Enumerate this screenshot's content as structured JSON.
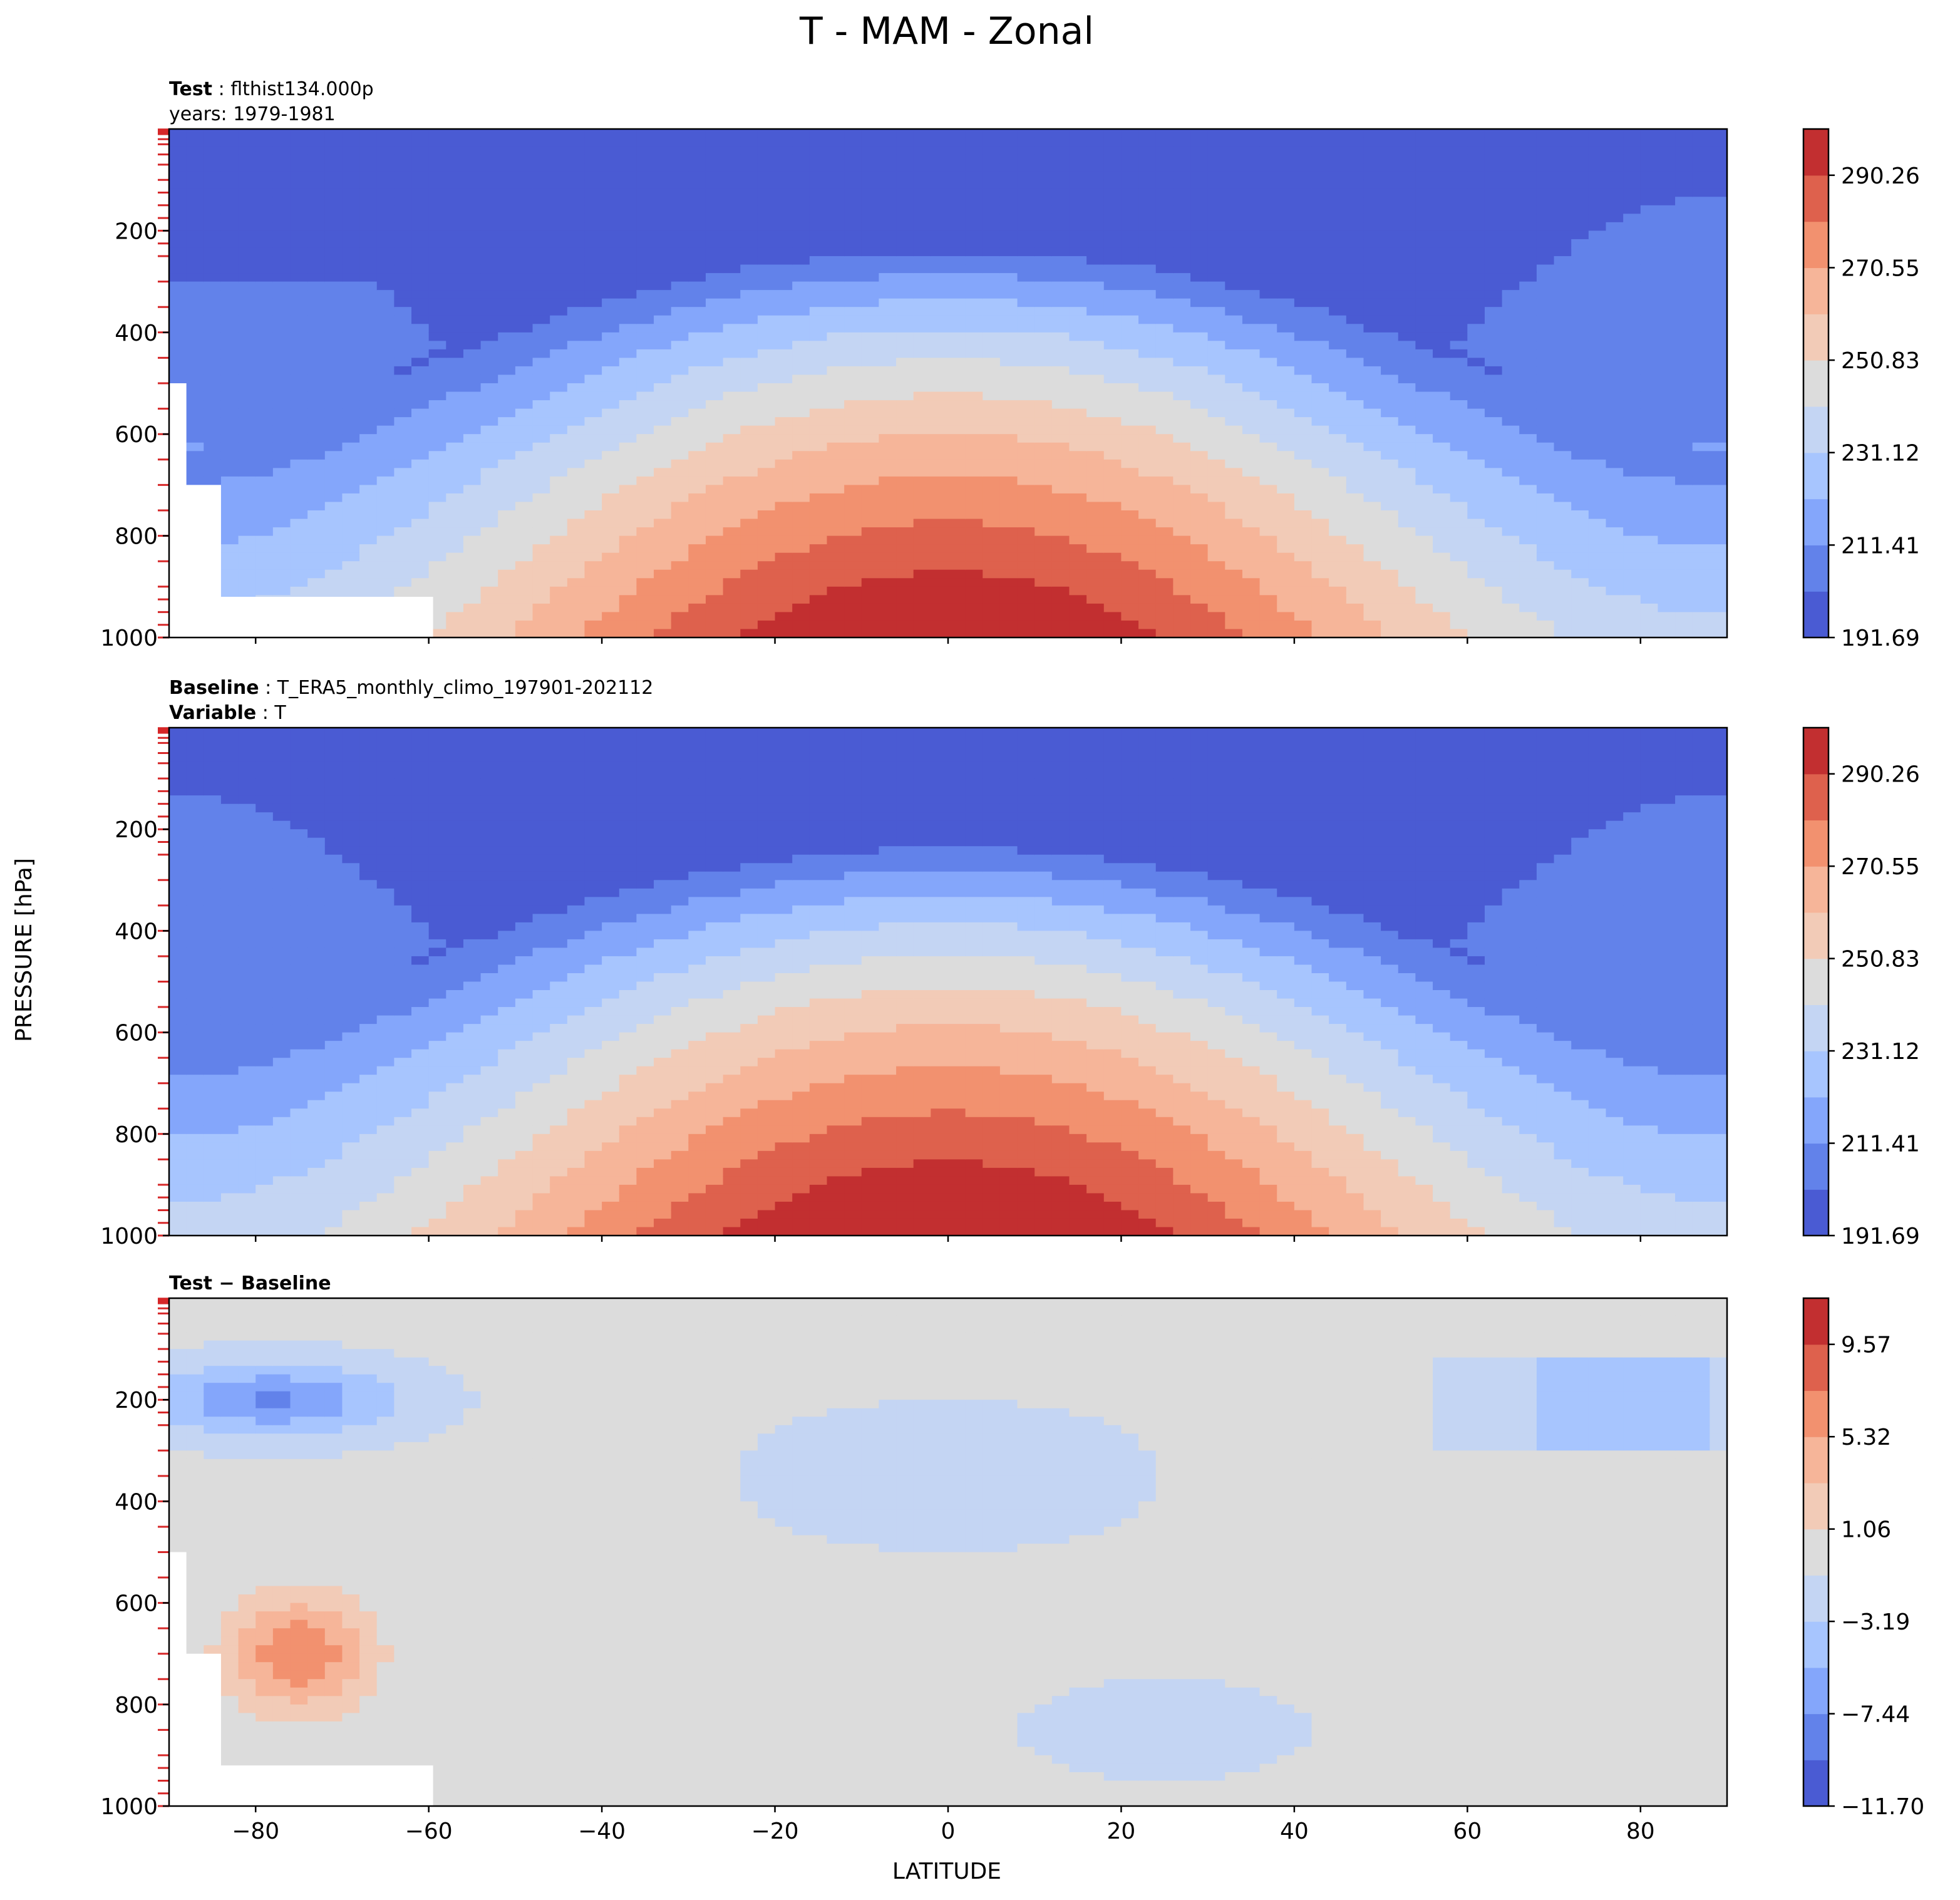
{
  "figure": {
    "title": "T - MAM - Zonal",
    "ylabel": "PRESSURE [hPa]",
    "xlabel": "LATITUDE"
  },
  "chart_data": [
    {
      "type": "heatmap",
      "panel": "test",
      "header": [
        {
          "bold": "Test",
          "text": ": flthist134.000p"
        },
        {
          "bold": "",
          "text": "years: 1979-1981"
        }
      ],
      "x_range": [
        -90,
        90
      ],
      "y_range": [
        1000,
        0
      ],
      "x_ticks": [
        -80,
        -60,
        -40,
        -20,
        0,
        20,
        40,
        60,
        80
      ],
      "y_ticks": [
        200,
        400,
        600,
        800,
        1000
      ],
      "colorbar_ticks": [
        "191.69",
        "211.41",
        "231.12",
        "250.83",
        "270.55",
        "290.26"
      ],
      "colorbar_range": [
        191.69,
        300.12
      ],
      "colorbar_levels": 11,
      "field_model": "test",
      "missing_topography": true
    },
    {
      "type": "heatmap",
      "panel": "baseline",
      "header": [
        {
          "bold": "Baseline",
          "text": ": T_ERA5_monthly_climo_197901-202112"
        },
        {
          "bold": "Variable",
          "text": ": T"
        }
      ],
      "x_range": [
        -90,
        90
      ],
      "y_range": [
        1000,
        0
      ],
      "x_ticks": [
        -80,
        -60,
        -40,
        -20,
        0,
        20,
        40,
        60,
        80
      ],
      "y_ticks": [
        200,
        400,
        600,
        800,
        1000
      ],
      "colorbar_ticks": [
        "191.69",
        "211.41",
        "231.12",
        "250.83",
        "270.55",
        "290.26"
      ],
      "colorbar_range": [
        191.69,
        300.12
      ],
      "colorbar_levels": 11,
      "field_model": "baseline",
      "missing_topography": false
    },
    {
      "type": "heatmap",
      "panel": "difference",
      "header": [
        {
          "bold": "Test − Baseline",
          "text": ""
        }
      ],
      "x_range": [
        -90,
        90
      ],
      "y_range": [
        1000,
        0
      ],
      "x_ticks": [
        -80,
        -60,
        -40,
        -20,
        0,
        20,
        40,
        60,
        80
      ],
      "y_ticks": [
        200,
        400,
        600,
        800,
        1000
      ],
      "x_tick_labels": [
        "−80",
        "−60",
        "−40",
        "−20",
        "0",
        "20",
        "40",
        "60",
        "80"
      ],
      "colorbar_ticks": [
        "−11.70",
        "−7.44",
        "−3.19",
        "1.06",
        "5.32",
        "9.57"
      ],
      "colorbar_range": [
        -11.7,
        11.7
      ],
      "colorbar_levels": 11,
      "field_model": "difference",
      "missing_topography": true
    }
  ],
  "colors": {
    "coolwarm": [
      "#4a5bd3",
      "#6282ea",
      "#84a6fb",
      "#a7c5fe",
      "#c4d5f3",
      "#dcdcdc",
      "#f2cbb7",
      "#f6b599",
      "#f2916f",
      "#de614d",
      "#c22f30"
    ],
    "level_ticks": "#d62728",
    "axes": "#000000"
  }
}
